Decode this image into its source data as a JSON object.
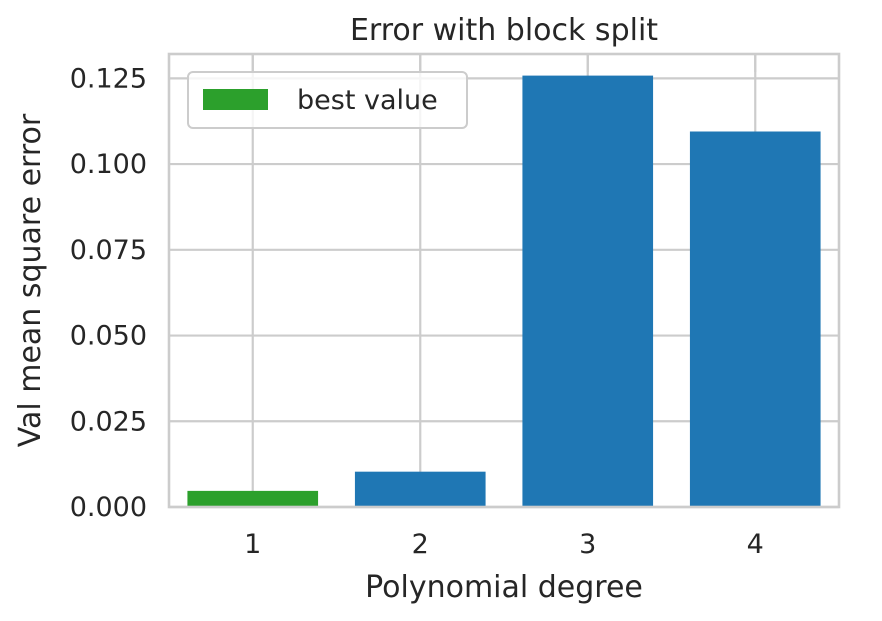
{
  "chart_data": {
    "type": "bar",
    "title": "Error with block split",
    "xlabel": "Polynomial degree",
    "ylabel": "Val mean square error",
    "categories": [
      "1",
      "2",
      "3",
      "4"
    ],
    "values": [
      0.0047,
      0.0103,
      0.1258,
      0.1095
    ],
    "bar_colors": [
      "#2ca02c",
      "#1f77b4",
      "#1f77b4",
      "#1f77b4"
    ],
    "ylim": [
      0,
      0.1321
    ],
    "yticks": [
      0,
      0.025,
      0.05,
      0.075,
      0.1,
      0.125
    ],
    "ytick_labels": [
      "0.000",
      "0.025",
      "0.050",
      "0.075",
      "0.100",
      "0.125"
    ],
    "grid": true,
    "legend": {
      "placement": "upper-left",
      "entries": [
        {
          "label": "best value",
          "color": "#2ca02c"
        }
      ]
    }
  }
}
